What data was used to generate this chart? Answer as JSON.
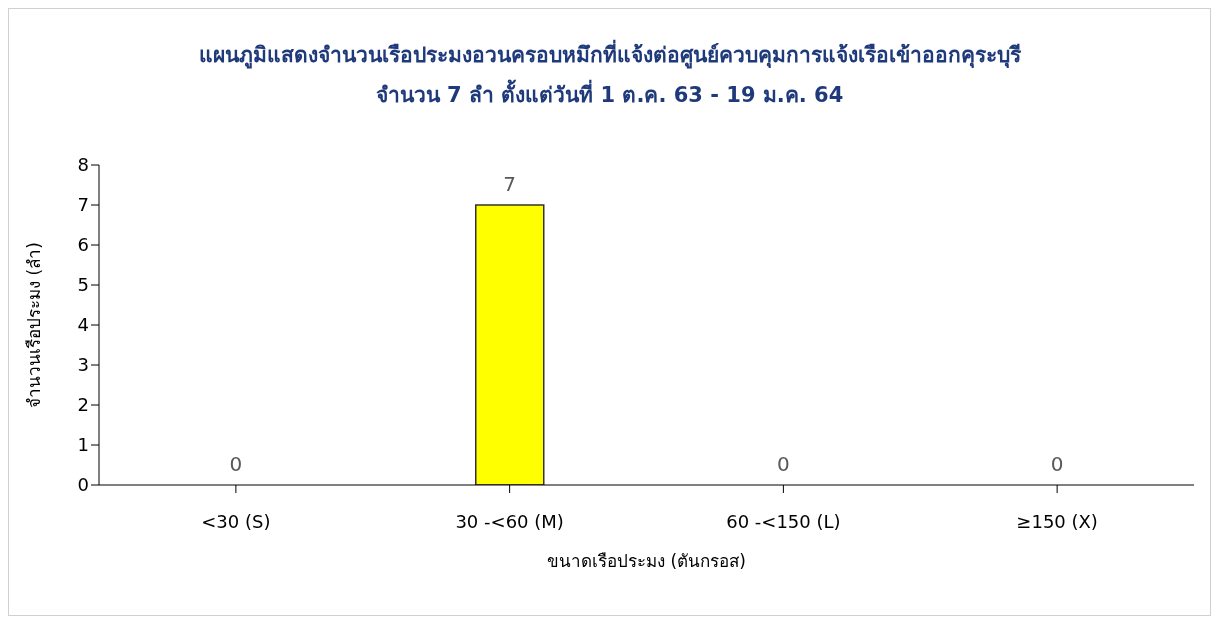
{
  "chart_data": {
    "type": "bar",
    "title": "แผนภูมิแสดงจำนวนเรือประมงอวนครอบหมึกที่แจ้งต่อศูนย์ควบคุมการแจ้งเรือเข้าออกคุระบุรี",
    "subtitle": "จำนวน 7 ลำ ตั้งแต่วันที่ 1 ต.ค. 63 - 19 ม.ค. 64",
    "xlabel": "ขนาดเรือประมง (ตันกรอส)",
    "ylabel": "จำนวนเรือประมง (ลำ)",
    "categories": [
      "<30 (S)",
      "30 -<60 (M)",
      "60 -<150 (L)",
      "≥150 (X)"
    ],
    "values": [
      0,
      7,
      0,
      0
    ],
    "color": "#ffff00",
    "ylim": [
      0,
      8
    ],
    "yticks": [
      0,
      1,
      2,
      3,
      4,
      5,
      6,
      7,
      8
    ],
    "grid": false,
    "data_labels": true
  }
}
